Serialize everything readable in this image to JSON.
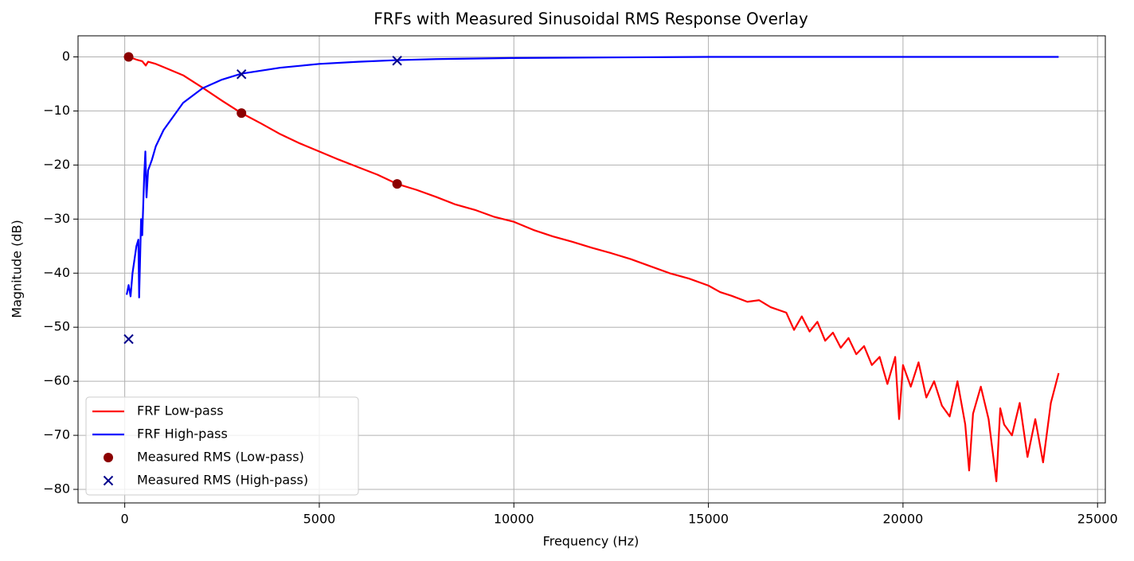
{
  "chart_data": {
    "type": "line",
    "title": "FRFs with Measured Sinusoidal RMS Response Overlay",
    "x_label": "Frequency (Hz)",
    "y_label": "Magnitude (dB)",
    "xlim": [
      -1200,
      25200
    ],
    "ylim": [
      -82.5,
      3.9
    ],
    "xticks": [
      0,
      5000,
      10000,
      15000,
      20000,
      25000
    ],
    "yticks": [
      {
        "value": 0,
        "label": "0"
      },
      {
        "value": -10,
        "label": "−10"
      },
      {
        "value": -20,
        "label": "−20"
      },
      {
        "value": -30,
        "label": "−30"
      },
      {
        "value": -40,
        "label": "−40"
      },
      {
        "value": -50,
        "label": "−50"
      },
      {
        "value": -60,
        "label": "−60"
      },
      {
        "value": -70,
        "label": "−70"
      },
      {
        "value": -80,
        "label": "−80"
      }
    ],
    "grid": true,
    "legend": "lower left",
    "series": [
      {
        "name": "FRF Low-pass",
        "kind": "line",
        "color": "#ff0000",
        "x": [
          100,
          300,
          450,
          540,
          600,
          800,
          1000,
          1500,
          2000,
          2500,
          3000,
          3500,
          4000,
          4500,
          5000,
          5500,
          6000,
          6500,
          7000,
          7500,
          8000,
          8500,
          9000,
          9500,
          10000,
          10500,
          11000,
          11500,
          12000,
          12500,
          13000,
          13500,
          14000,
          14500,
          15000,
          15300,
          15600,
          16000,
          16300,
          16600,
          17000,
          17200,
          17400,
          17600,
          17800,
          18000,
          18200,
          18400,
          18600,
          18800,
          19000,
          19200,
          19400,
          19600,
          19800,
          19900,
          20000,
          20200,
          20400,
          20600,
          20800,
          21000,
          21200,
          21400,
          21600,
          21700,
          21800,
          22000,
          22200,
          22400,
          22500,
          22600,
          22800,
          23000,
          23200,
          23400,
          23600,
          23800,
          24000
        ],
        "values": [
          0,
          -0.5,
          -0.8,
          -1.6,
          -0.9,
          -1.3,
          -1.9,
          -3.4,
          -5.7,
          -8.1,
          -10.4,
          -12.3,
          -14.3,
          -16.0,
          -17.5,
          -19.0,
          -20.4,
          -21.8,
          -23.5,
          -24.6,
          -25.9,
          -27.3,
          -28.3,
          -29.6,
          -30.5,
          -32.0,
          -33.2,
          -34.2,
          -35.3,
          -36.3,
          -37.4,
          -38.7,
          -40.0,
          -41.0,
          -42.3,
          -43.5,
          -44.2,
          -45.3,
          -45.0,
          -46.3,
          -47.3,
          -50.5,
          -48.0,
          -50.8,
          -49.0,
          -52.5,
          -51.0,
          -53.8,
          -52.0,
          -55.0,
          -53.5,
          -57.0,
          -55.5,
          -60.5,
          -55.5,
          -67.0,
          -57.0,
          -61.0,
          -56.5,
          -63.0,
          -60.0,
          -64.5,
          -66.5,
          -60.0,
          -68.0,
          -76.5,
          -66.0,
          -61.0,
          -67.0,
          -78.5,
          -65.0,
          -68.0,
          -70.0,
          -64.0,
          -74.0,
          -67.0,
          -75.0,
          -64.0,
          -58.5
        ]
      },
      {
        "name": "FRF High-pass",
        "kind": "line",
        "color": "#0000ff",
        "x": [
          50,
          100,
          150,
          200,
          300,
          350,
          370,
          420,
          450,
          500,
          530,
          560,
          600,
          700,
          800,
          1000,
          1500,
          2000,
          2500,
          3000,
          4000,
          5000,
          6000,
          7000,
          8000,
          10000,
          15000,
          20000,
          24000
        ],
        "values": [
          -44,
          -42.2,
          -44.3,
          -40,
          -35,
          -33.8,
          -44.5,
          -30,
          -33,
          -22,
          -17.5,
          -26,
          -21,
          -19,
          -16.5,
          -13.5,
          -8.5,
          -5.8,
          -4.2,
          -3.1,
          -2,
          -1.3,
          -0.9,
          -0.6,
          -0.4,
          -0.2,
          0,
          0,
          0
        ]
      },
      {
        "name": "Measured RMS (Low-pass)",
        "kind": "scatter",
        "marker": "o",
        "color": "#8b0000",
        "x": [
          100,
          3000,
          7000
        ],
        "values": [
          0,
          -10.4,
          -23.5
        ]
      },
      {
        "name": "Measured RMS (High-pass)",
        "kind": "scatter",
        "marker": "x",
        "color": "#00008b",
        "x": [
          100,
          3000,
          7000
        ],
        "values": [
          -52.2,
          -3.2,
          -0.7
        ]
      }
    ]
  }
}
